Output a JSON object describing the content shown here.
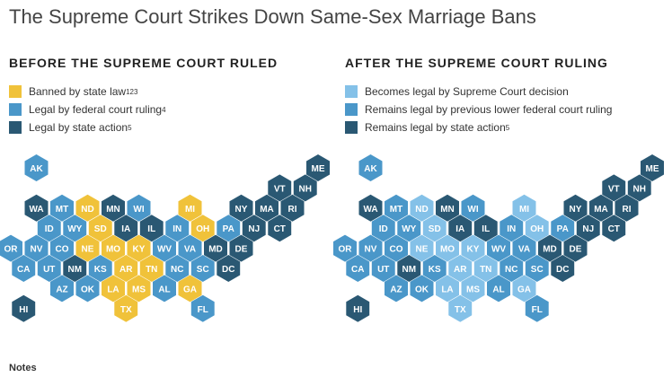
{
  "title": "The Supreme Court Strikes Down Same-Sex Marriage Bans",
  "notes_label": "Notes",
  "colors": {
    "banned": "#f0c23a",
    "federal": "#4a97c9",
    "state": "#2a5873",
    "supreme": "#84c1e8"
  },
  "before": {
    "heading": "BEFORE THE SUPREME COURT RULED",
    "legend": [
      {
        "status": "banned",
        "label": "Banned by state law",
        "sup": "123"
      },
      {
        "status": "federal",
        "label": "Legal by federal court ruling",
        "sup": "4"
      },
      {
        "status": "state",
        "label": "Legal by state action",
        "sup": "5"
      }
    ]
  },
  "after": {
    "heading": "AFTER THE SUPREME COURT RULING",
    "legend": [
      {
        "status": "supreme",
        "label": "Becomes legal by Supreme Court decision",
        "sup": ""
      },
      {
        "status": "federal",
        "label": "Remains legal by previous lower federal court ruling",
        "sup": ""
      },
      {
        "status": "state",
        "label": "Remains legal by state action",
        "sup": "5"
      }
    ]
  },
  "states": [
    {
      "abbr": "AK",
      "row": 0,
      "col": 1,
      "before": "federal",
      "after": "federal"
    },
    {
      "abbr": "ME",
      "row": 0,
      "col": 12,
      "before": "state",
      "after": "state"
    },
    {
      "abbr": "VT",
      "row": 1,
      "col": 10,
      "before": "state",
      "after": "state"
    },
    {
      "abbr": "NH",
      "row": 1,
      "col": 11,
      "before": "state",
      "after": "state"
    },
    {
      "abbr": "WA",
      "row": 2,
      "col": 1,
      "before": "state",
      "after": "state"
    },
    {
      "abbr": "MT",
      "row": 2,
      "col": 2,
      "before": "federal",
      "after": "federal"
    },
    {
      "abbr": "ND",
      "row": 2,
      "col": 3,
      "before": "banned",
      "after": "supreme"
    },
    {
      "abbr": "MN",
      "row": 2,
      "col": 4,
      "before": "state",
      "after": "state"
    },
    {
      "abbr": "WI",
      "row": 2,
      "col": 5,
      "before": "federal",
      "after": "federal"
    },
    {
      "abbr": "MI",
      "row": 2,
      "col": 7,
      "before": "banned",
      "after": "supreme"
    },
    {
      "abbr": "NY",
      "row": 2,
      "col": 9,
      "before": "state",
      "after": "state"
    },
    {
      "abbr": "MA",
      "row": 2,
      "col": 10,
      "before": "state",
      "after": "state"
    },
    {
      "abbr": "RI",
      "row": 2,
      "col": 11,
      "before": "state",
      "after": "state"
    },
    {
      "abbr": "ID",
      "row": 3,
      "col": 1,
      "before": "federal",
      "after": "federal"
    },
    {
      "abbr": "WY",
      "row": 3,
      "col": 2,
      "before": "federal",
      "after": "federal"
    },
    {
      "abbr": "SD",
      "row": 3,
      "col": 3,
      "before": "banned",
      "after": "supreme"
    },
    {
      "abbr": "IA",
      "row": 3,
      "col": 4,
      "before": "state",
      "after": "state"
    },
    {
      "abbr": "IL",
      "row": 3,
      "col": 5,
      "before": "state",
      "after": "state"
    },
    {
      "abbr": "IN",
      "row": 3,
      "col": 6,
      "before": "federal",
      "after": "federal"
    },
    {
      "abbr": "OH",
      "row": 3,
      "col": 7,
      "before": "banned",
      "after": "supreme"
    },
    {
      "abbr": "PA",
      "row": 3,
      "col": 8,
      "before": "federal",
      "after": "federal"
    },
    {
      "abbr": "NJ",
      "row": 3,
      "col": 9,
      "before": "state",
      "after": "state"
    },
    {
      "abbr": "CT",
      "row": 3,
      "col": 10,
      "before": "state",
      "after": "state"
    },
    {
      "abbr": "OR",
      "row": 4,
      "col": 0,
      "before": "federal",
      "after": "federal"
    },
    {
      "abbr": "NV",
      "row": 4,
      "col": 1,
      "before": "federal",
      "after": "federal"
    },
    {
      "abbr": "CO",
      "row": 4,
      "col": 2,
      "before": "federal",
      "after": "federal"
    },
    {
      "abbr": "NE",
      "row": 4,
      "col": 3,
      "before": "banned",
      "after": "supreme"
    },
    {
      "abbr": "MO",
      "row": 4,
      "col": 4,
      "before": "banned",
      "after": "supreme"
    },
    {
      "abbr": "KY",
      "row": 4,
      "col": 5,
      "before": "banned",
      "after": "supreme"
    },
    {
      "abbr": "WV",
      "row": 4,
      "col": 6,
      "before": "federal",
      "after": "federal"
    },
    {
      "abbr": "VA",
      "row": 4,
      "col": 7,
      "before": "federal",
      "after": "federal"
    },
    {
      "abbr": "MD",
      "row": 4,
      "col": 8,
      "before": "state",
      "after": "state"
    },
    {
      "abbr": "DE",
      "row": 4,
      "col": 9,
      "before": "state",
      "after": "state"
    },
    {
      "abbr": "CA",
      "row": 5,
      "col": 0,
      "before": "federal",
      "after": "federal"
    },
    {
      "abbr": "UT",
      "row": 5,
      "col": 1,
      "before": "federal",
      "after": "federal"
    },
    {
      "abbr": "NM",
      "row": 5,
      "col": 2,
      "before": "state",
      "after": "state"
    },
    {
      "abbr": "KS",
      "row": 5,
      "col": 3,
      "before": "federal",
      "after": "federal"
    },
    {
      "abbr": "AR",
      "row": 5,
      "col": 4,
      "before": "banned",
      "after": "supreme"
    },
    {
      "abbr": "TN",
      "row": 5,
      "col": 5,
      "before": "banned",
      "after": "supreme"
    },
    {
      "abbr": "NC",
      "row": 5,
      "col": 6,
      "before": "federal",
      "after": "federal"
    },
    {
      "abbr": "SC",
      "row": 5,
      "col": 7,
      "before": "federal",
      "after": "federal"
    },
    {
      "abbr": "DC",
      "row": 5,
      "col": 8,
      "before": "state",
      "after": "state"
    },
    {
      "abbr": "AZ",
      "row": 6,
      "col": 2,
      "before": "federal",
      "after": "federal"
    },
    {
      "abbr": "OK",
      "row": 6,
      "col": 3,
      "before": "federal",
      "after": "federal"
    },
    {
      "abbr": "LA",
      "row": 6,
      "col": 4,
      "before": "banned",
      "after": "supreme"
    },
    {
      "abbr": "MS",
      "row": 6,
      "col": 5,
      "before": "banned",
      "after": "supreme"
    },
    {
      "abbr": "AL",
      "row": 6,
      "col": 6,
      "before": "federal",
      "after": "federal"
    },
    {
      "abbr": "GA",
      "row": 6,
      "col": 7,
      "before": "banned",
      "after": "supreme"
    },
    {
      "abbr": "HI",
      "row": 7,
      "col": 0,
      "before": "state",
      "after": "state"
    },
    {
      "abbr": "TX",
      "row": 7,
      "col": 4,
      "before": "banned",
      "after": "supreme"
    },
    {
      "abbr": "FL",
      "row": 7,
      "col": 7,
      "before": "federal",
      "after": "federal"
    }
  ]
}
